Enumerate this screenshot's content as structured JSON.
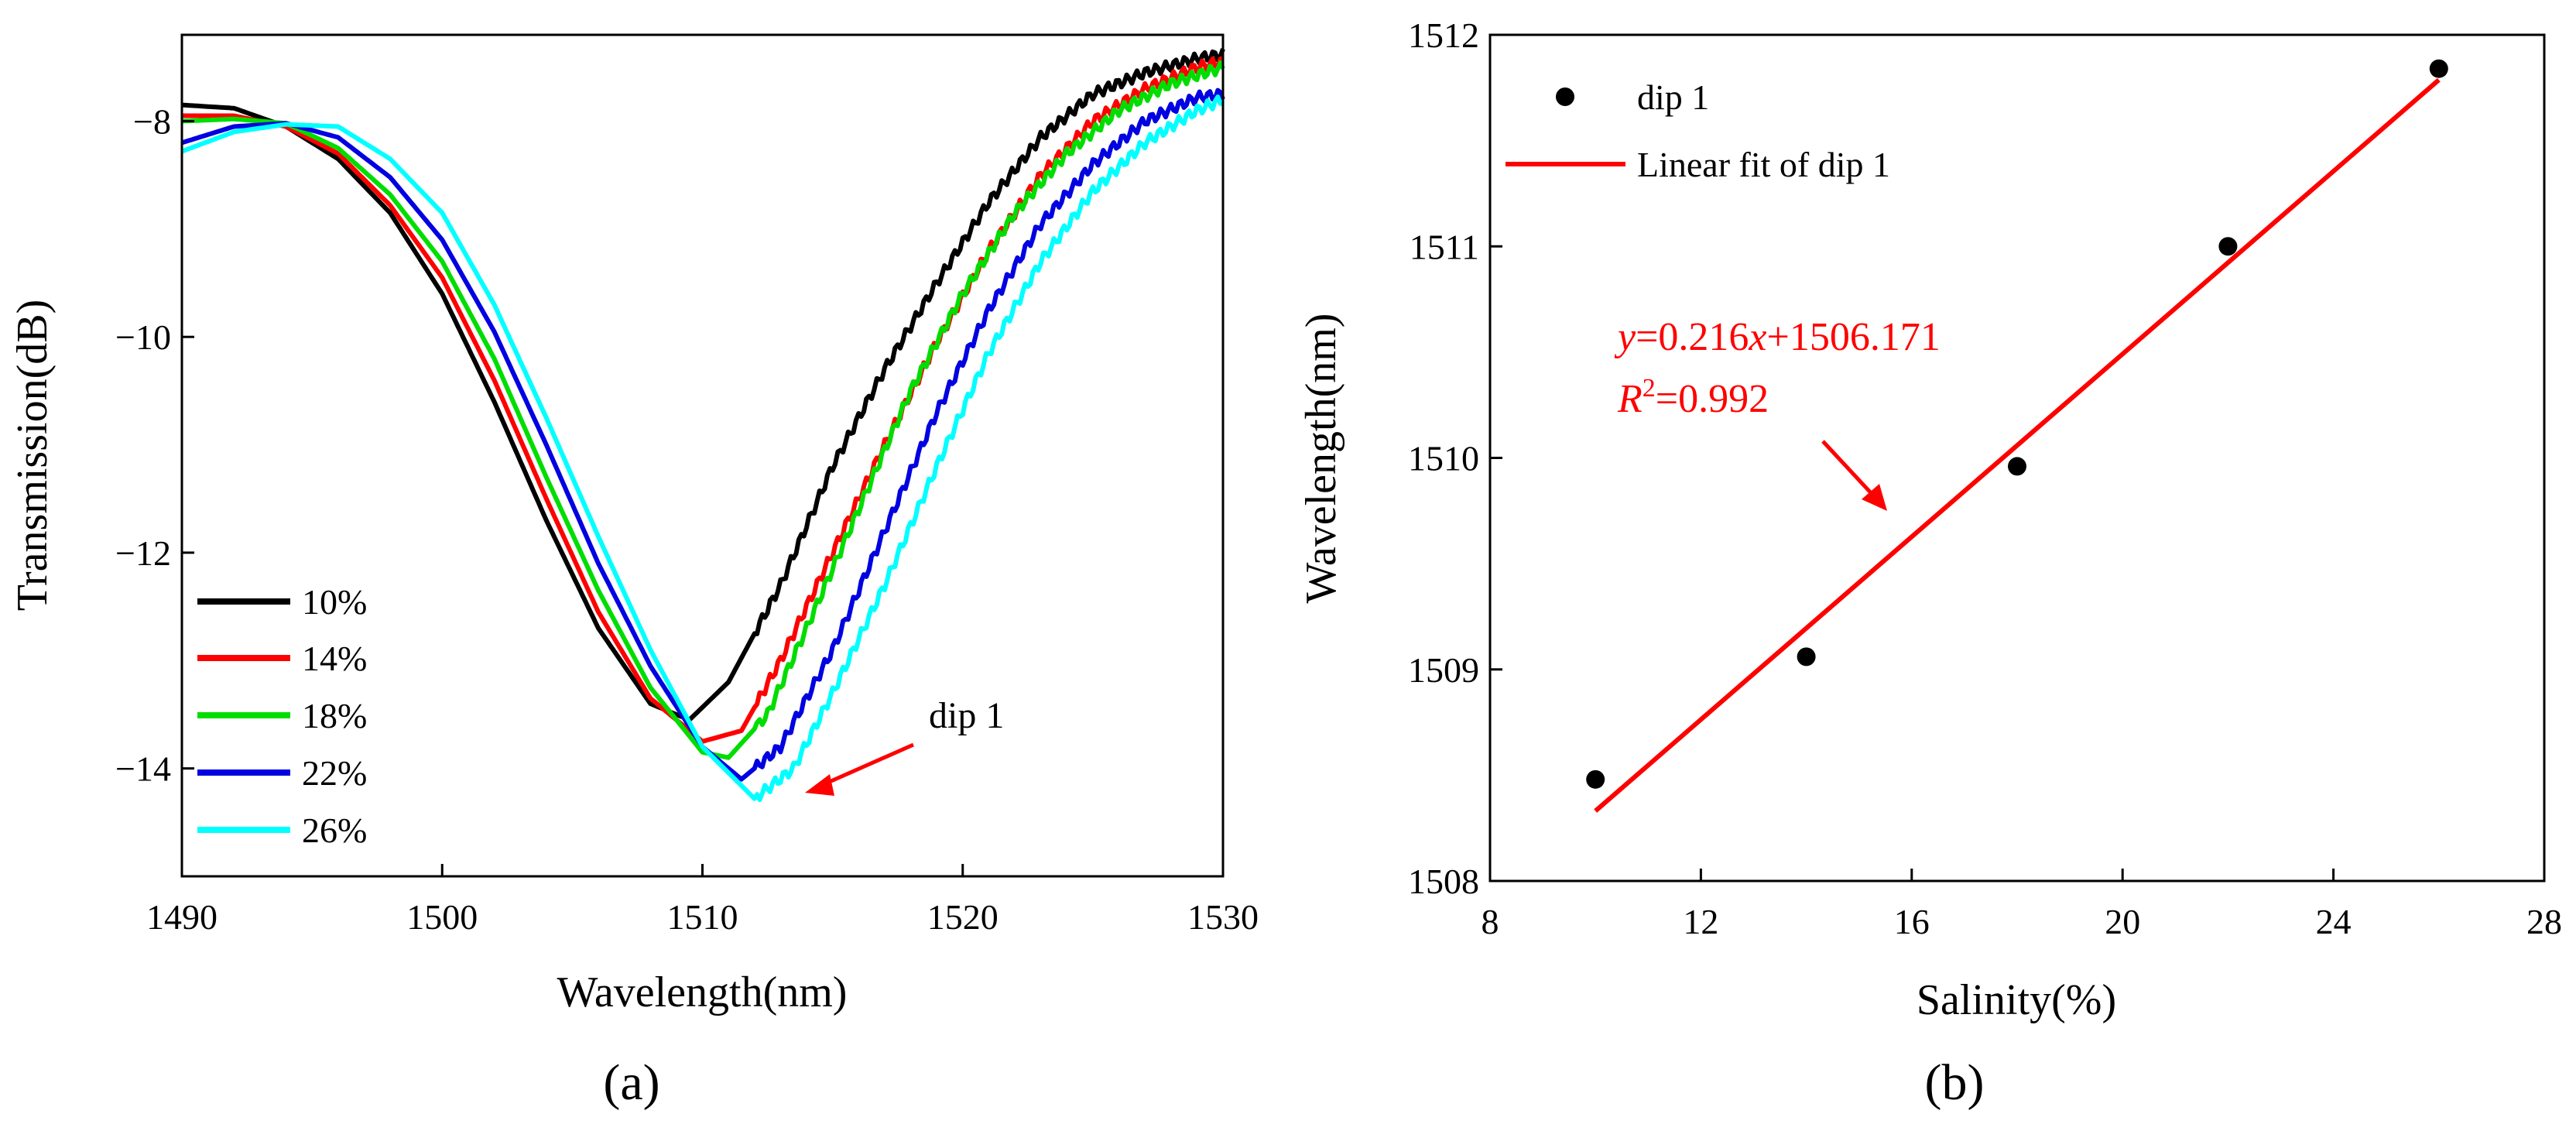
{
  "colors": {
    "s10": "#000000",
    "s14": "#ff0000",
    "s18": "#00dd00",
    "s22": "#0000e0",
    "s26": "#00ffff",
    "fit": "#ff0000",
    "points": "#000000",
    "arrow": "#ff0000"
  },
  "captions": {
    "a": "(a)",
    "b": "(b)"
  },
  "chart_data": [
    {
      "id": "a",
      "type": "line",
      "xlabel": "Wavelength(nm)",
      "ylabel": "Transmission(dB)",
      "xlim": [
        1490,
        1530
      ],
      "ylim": [
        -15,
        -7.2
      ],
      "xticks": [
        1490,
        1500,
        1510,
        1520,
        1530
      ],
      "yticks": [
        -14,
        -12,
        -10,
        -8
      ],
      "ytick_labels": [
        "−14",
        "−12",
        "−10",
        "−8"
      ],
      "annotation": "dip 1",
      "series": [
        {
          "name": "10%",
          "color_key": "s10",
          "x": [
            1490,
            1492,
            1494,
            1496,
            1498,
            1500,
            1502,
            1504,
            1506,
            1508,
            1509.5,
            1511,
            1513,
            1515,
            1517,
            1519,
            1521,
            1523,
            1525,
            1527,
            1529,
            1530
          ],
          "y": [
            -7.85,
            -7.88,
            -8.05,
            -8.35,
            -8.85,
            -9.6,
            -10.6,
            -11.7,
            -12.7,
            -13.4,
            -13.55,
            -13.2,
            -12.3,
            -11.2,
            -10.3,
            -9.5,
            -8.75,
            -8.15,
            -7.75,
            -7.55,
            -7.42,
            -7.38
          ]
        },
        {
          "name": "14%",
          "color_key": "s14",
          "x": [
            1490,
            1492,
            1494,
            1496,
            1498,
            1500,
            1502,
            1504,
            1506,
            1508,
            1510,
            1511.5,
            1513,
            1515,
            1517,
            1519,
            1521,
            1523,
            1525,
            1527,
            1529,
            1530
          ],
          "y": [
            -7.95,
            -7.95,
            -8.05,
            -8.3,
            -8.78,
            -9.45,
            -10.4,
            -11.5,
            -12.55,
            -13.35,
            -13.75,
            -13.65,
            -13.0,
            -12.0,
            -11.0,
            -10.05,
            -9.2,
            -8.5,
            -8.0,
            -7.7,
            -7.5,
            -7.45
          ]
        },
        {
          "name": "18%",
          "color_key": "s18",
          "x": [
            1490,
            1492,
            1494,
            1496,
            1498,
            1500,
            1502,
            1504,
            1506,
            1508,
            1510,
            1511,
            1512.5,
            1514,
            1516,
            1518,
            1520,
            1522,
            1524,
            1526,
            1528,
            1530
          ],
          "y": [
            -8.0,
            -7.98,
            -8.02,
            -8.25,
            -8.68,
            -9.3,
            -10.2,
            -11.3,
            -12.35,
            -13.25,
            -13.85,
            -13.9,
            -13.5,
            -12.7,
            -11.6,
            -10.5,
            -9.6,
            -8.85,
            -8.3,
            -7.9,
            -7.65,
            -7.5
          ]
        },
        {
          "name": "22%",
          "color_key": "s22",
          "x": [
            1490,
            1492,
            1494,
            1496,
            1498,
            1500,
            1502,
            1504,
            1506,
            1508,
            1510,
            1511.5,
            1513,
            1515,
            1517,
            1519,
            1521,
            1523,
            1525,
            1527,
            1529,
            1530
          ],
          "y": [
            -8.2,
            -8.05,
            -8.02,
            -8.15,
            -8.52,
            -9.1,
            -9.95,
            -11.0,
            -12.1,
            -13.05,
            -13.8,
            -14.1,
            -13.8,
            -12.9,
            -11.8,
            -10.7,
            -9.75,
            -8.95,
            -8.4,
            -8.0,
            -7.78,
            -7.75
          ]
        },
        {
          "name": "26%",
          "color_key": "s26",
          "x": [
            1490,
            1492,
            1494,
            1496,
            1498,
            1500,
            1502,
            1504,
            1506,
            1508,
            1510,
            1512,
            1513.5,
            1515,
            1517,
            1519,
            1521,
            1523,
            1525,
            1527,
            1529,
            1530
          ],
          "y": [
            -8.28,
            -8.1,
            -8.03,
            -8.05,
            -8.35,
            -8.85,
            -9.7,
            -10.75,
            -11.85,
            -12.9,
            -13.8,
            -14.28,
            -14.0,
            -13.3,
            -12.3,
            -11.2,
            -10.15,
            -9.3,
            -8.65,
            -8.2,
            -7.9,
            -7.8
          ]
        }
      ],
      "legend": [
        "10%",
        "14%",
        "18%",
        "22%",
        "26%"
      ]
    },
    {
      "id": "b",
      "type": "scatter",
      "xlabel": "Salinity(%)",
      "ylabel": "Wavelength(nm)",
      "xlim": [
        8,
        28
      ],
      "ylim": [
        1508,
        1512
      ],
      "xticks": [
        8,
        12,
        16,
        20,
        24,
        28
      ],
      "yticks": [
        1508,
        1509,
        1510,
        1511,
        1512
      ],
      "points": {
        "name": "dip 1",
        "x": [
          10,
          14,
          18,
          22,
          26
        ],
        "y": [
          1508.48,
          1509.06,
          1509.96,
          1511.0,
          1511.84
        ]
      },
      "fit": {
        "name": "Linear fit of dip 1",
        "slope": 0.216,
        "intercept": 1506.171,
        "x_range": [
          10,
          26
        ]
      },
      "equation": {
        "y_var": "y",
        "eq_mid": "=0.216",
        "x_var": "x",
        "eq_end": "+1506.171",
        "r_var": "R",
        "r_sup": "2",
        "r_val": "=0.992"
      }
    }
  ]
}
